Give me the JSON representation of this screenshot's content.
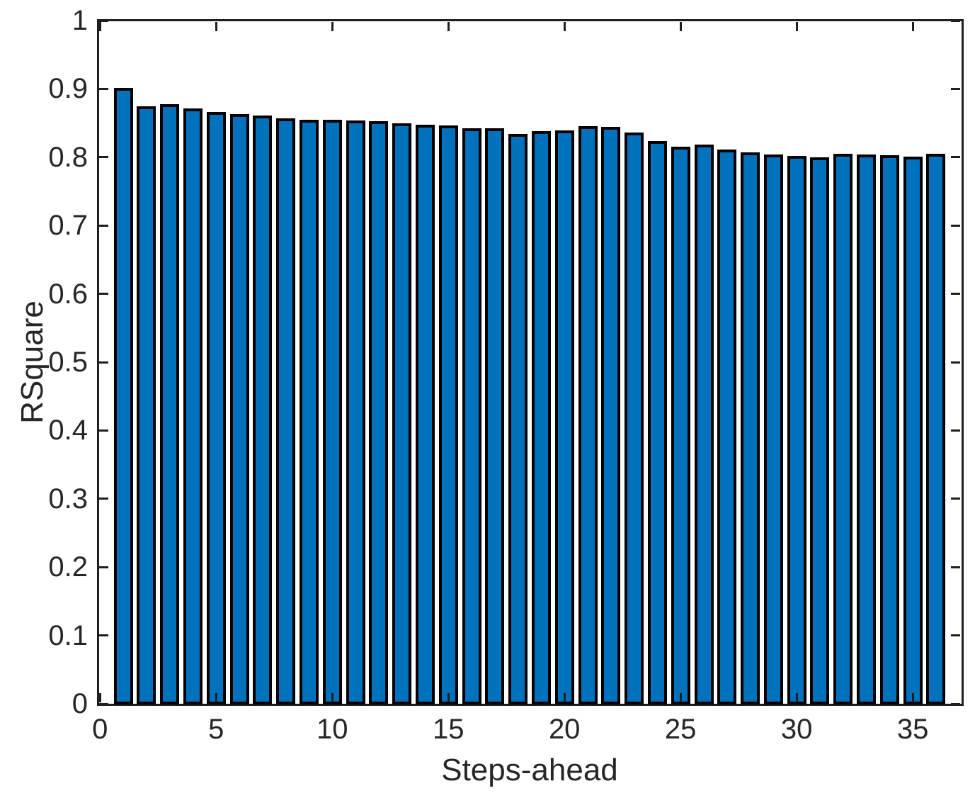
{
  "chart_data": {
    "type": "bar",
    "title": "",
    "xlabel": "Steps-ahead",
    "ylabel": "RSquare",
    "x": [
      1,
      2,
      3,
      4,
      5,
      6,
      7,
      8,
      9,
      10,
      11,
      12,
      13,
      14,
      15,
      16,
      17,
      18,
      19,
      20,
      21,
      22,
      23,
      24,
      25,
      26,
      27,
      28,
      29,
      30,
      31,
      32,
      33,
      34,
      35,
      36
    ],
    "values": [
      0.901,
      0.875,
      0.878,
      0.871,
      0.866,
      0.863,
      0.861,
      0.857,
      0.855,
      0.855,
      0.854,
      0.853,
      0.85,
      0.848,
      0.847,
      0.842,
      0.842,
      0.834,
      0.838,
      0.839,
      0.845,
      0.844,
      0.836,
      0.824,
      0.815,
      0.819,
      0.811,
      0.807,
      0.804,
      0.802,
      0.8,
      0.805,
      0.804,
      0.803,
      0.801,
      0.805
    ],
    "xlim": [
      -0.1,
      37.1
    ],
    "ylim": [
      0,
      1
    ],
    "xticks": [
      0,
      5,
      10,
      15,
      20,
      25,
      30,
      35
    ],
    "xtick_labels": [
      "0",
      "5",
      "10",
      "15",
      "20",
      "25",
      "30",
      "35"
    ],
    "yticks": [
      0,
      0.1,
      0.2,
      0.3,
      0.4,
      0.5,
      0.6,
      0.7,
      0.8,
      0.9,
      1
    ],
    "ytick_labels": [
      "0",
      "0.1",
      "0.2",
      "0.3",
      "0.4",
      "0.5",
      "0.6",
      "0.7",
      "0.8",
      "0.9",
      "1"
    ],
    "grid": false,
    "legend": null,
    "box": "on",
    "tick_direction": "in",
    "bar_color": "#0072BD",
    "bar_edge_color": "#000000",
    "axis_color": "#1f1f1f",
    "text_color": "#262626",
    "background_color": "#ffffff"
  }
}
